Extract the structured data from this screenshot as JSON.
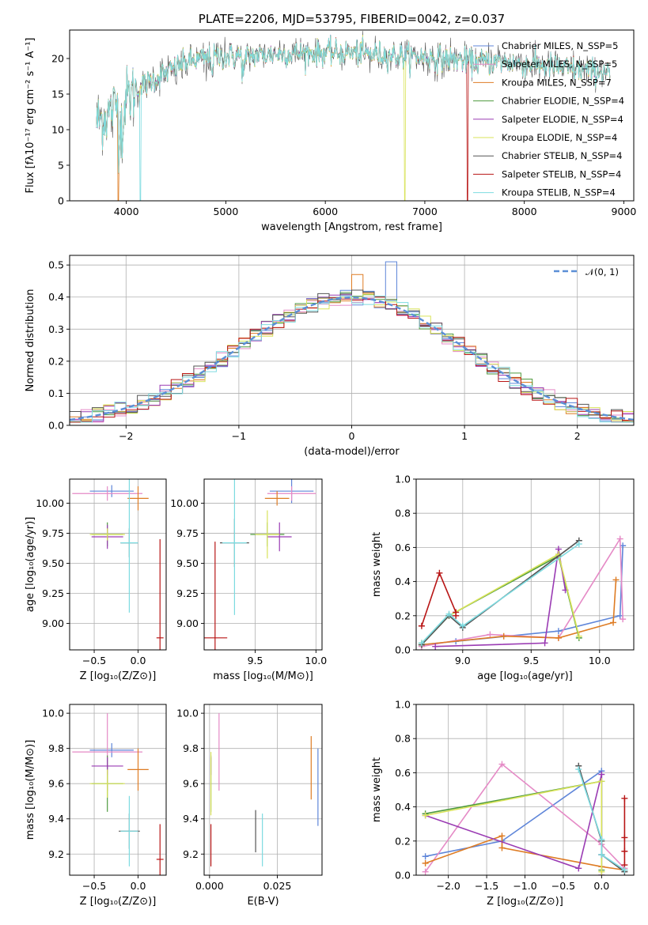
{
  "colors": {
    "c_miles": "#5f86d9",
    "s_miles": "#e58ac6",
    "k_miles": "#de7c24",
    "c_elodie": "#4e9a3e",
    "s_elodie": "#9a3bb3",
    "k_elodie": "#d9e35a",
    "c_stelib": "#555555",
    "s_stelib": "#b81515",
    "k_stelib": "#7ddbe0",
    "normal": "#5b8fd6"
  },
  "chart_data": [
    {
      "id": "spectrum",
      "type": "line",
      "title": "PLATE=2206, MJD=53795, FIBERID=0042, z=0.037",
      "xlabel": "wavelength [Angstrom, rest frame]",
      "ylabel": "Flux [fλ10⁻¹⁷ erg cm⁻² s⁻¹ A⁻¹]",
      "xlim": [
        3430,
        9100
      ],
      "ylim": [
        0,
        24
      ],
      "xticks": [
        "4000",
        "5000",
        "6000",
        "7000",
        "8000",
        "9000"
      ],
      "yticks": [
        "0",
        "5",
        "10",
        "15",
        "20"
      ],
      "grid": false,
      "legend_position": "top-right",
      "continuum": {
        "x": [
          3700,
          3800,
          3900,
          4000,
          4100,
          4200,
          4400,
          4600,
          4800,
          5000,
          5200,
          5500,
          5800,
          6000,
          6300,
          6600,
          6900,
          7200,
          7500,
          7800,
          8200,
          8500,
          8850
        ],
        "y": [
          11,
          12,
          13.5,
          14.5,
          15.5,
          16.5,
          18,
          19.5,
          20,
          20.3,
          20.3,
          20.6,
          20.8,
          20.8,
          20.8,
          20.5,
          20.3,
          20,
          19.5,
          19.5,
          19,
          18.5,
          18
        ]
      },
      "series": [
        {
          "name": "Chabrier MILES, N_SSP=5",
          "color_key": "c_miles"
        },
        {
          "name": "Salpeter MILES, N_SSP=5",
          "color_key": "s_miles"
        },
        {
          "name": "Kroupa MILES, N_SSP=7",
          "color_key": "k_miles"
        },
        {
          "name": "Chabrier ELODIE, N_SSP=4",
          "color_key": "c_elodie"
        },
        {
          "name": "Salpeter ELODIE, N_SSP=4",
          "color_key": "s_elodie"
        },
        {
          "name": "Kroupa ELODIE, N_SSP=4",
          "color_key": "k_elodie"
        },
        {
          "name": "Chabrier STELIB, N_SSP=4",
          "color_key": "c_stelib"
        },
        {
          "name": "Salpeter STELIB, N_SSP=4",
          "color_key": "s_stelib"
        },
        {
          "name": "Kroupa STELIB, N_SSP=4",
          "color_key": "k_stelib"
        }
      ]
    },
    {
      "id": "residuals",
      "type": "bar",
      "xlabel": "(data-model)/error",
      "ylabel": "Normed distribution",
      "xlim": [
        -2.5,
        2.5
      ],
      "ylim": [
        0,
        0.53
      ],
      "xticks": [
        "−2",
        "−1",
        "0",
        "1",
        "2"
      ],
      "yticks": [
        "0.0",
        "0.1",
        "0.2",
        "0.3",
        "0.4",
        "0.5"
      ],
      "grid": true,
      "legend": "𝒩(0, 1)",
      "bin_edges_start": -2.5,
      "bin_width": 0.1,
      "bins": 50,
      "legend_position": "top-right"
    },
    {
      "id": "age_vs_Z",
      "type": "scatter",
      "xlabel": "Z [log₁₀(Z/Z⊙)]",
      "ylabel": "age  [log₁₀(age/yr)]",
      "xlim": [
        -0.78,
        0.32
      ],
      "ylim": [
        8.78,
        10.2
      ],
      "xticks": [
        "−0.5",
        "0.0"
      ],
      "yticks": [
        "9.00",
        "9.25",
        "9.50",
        "9.75",
        "10.00"
      ],
      "grid": true,
      "points": [
        {
          "color_key": "c_miles",
          "x": -0.3,
          "xerr": 0.25,
          "y": 10.1,
          "yerr": 0.05
        },
        {
          "color_key": "s_miles",
          "x": -0.35,
          "xerr": 0.4,
          "y": 10.08,
          "yerr": 0.06
        },
        {
          "color_key": "k_miles",
          "x": 0.0,
          "xerr": 0.12,
          "y": 10.04,
          "yerr": 0.1
        },
        {
          "color_key": "c_elodie",
          "x": -0.35,
          "xerr": 0.18,
          "y": 9.74,
          "yerr": 0.1
        },
        {
          "color_key": "s_elodie",
          "x": -0.35,
          "xerr": 0.18,
          "y": 9.72,
          "yerr": 0.1
        },
        {
          "color_key": "k_elodie",
          "x": -0.35,
          "xerr": 0.2,
          "y": 9.74,
          "yerr": 0.05
        },
        {
          "color_key": "c_stelib",
          "x": -0.1,
          "xerr": 0.1,
          "y": 9.67,
          "yerr": 0.12
        },
        {
          "color_key": "s_stelib",
          "x": 0.25,
          "xerr": 0.04,
          "y": 8.88,
          "yerr": 0.82
        },
        {
          "color_key": "k_stelib",
          "x": -0.1,
          "xerr": 0.1,
          "y": 9.67,
          "yerr": 0.58
        }
      ]
    },
    {
      "id": "age_vs_mass",
      "type": "scatter",
      "xlabel": "mass [log₁₀(M/M⊙)]",
      "ylabel": "",
      "xlim": [
        9.08,
        10.05
      ],
      "ylim": [
        8.78,
        10.2
      ],
      "xticks": [
        "9.5",
        "10.0"
      ],
      "yticks": [
        "9.00",
        "9.25",
        "9.50",
        "9.75",
        "10.00"
      ],
      "grid": true,
      "points": [
        {
          "color_key": "c_miles",
          "x": 9.8,
          "xerr": 0.18,
          "y": 10.1,
          "yerr": 0.1
        },
        {
          "color_key": "s_miles",
          "x": 9.8,
          "xerr": 0.2,
          "y": 10.08,
          "yerr": 0.06
        },
        {
          "color_key": "k_miles",
          "x": 9.68,
          "xerr": 0.1,
          "y": 10.04,
          "yerr": 0.06
        },
        {
          "color_key": "c_elodie",
          "x": 9.6,
          "xerr": 0.14,
          "y": 9.74,
          "yerr": 0.1
        },
        {
          "color_key": "s_elodie",
          "x": 9.7,
          "xerr": 0.1,
          "y": 9.72,
          "yerr": 0.12
        },
        {
          "color_key": "k_elodie",
          "x": 9.6,
          "xerr": 0.1,
          "y": 9.74,
          "yerr": 0.2
        },
        {
          "color_key": "c_stelib",
          "x": 9.33,
          "xerr": 0.12,
          "y": 9.67,
          "yerr": 0.2
        },
        {
          "color_key": "s_stelib",
          "x": 9.17,
          "xerr": 0.1,
          "y": 8.88,
          "yerr": 0.8
        },
        {
          "color_key": "k_stelib",
          "x": 9.33,
          "xerr": 0.1,
          "y": 9.67,
          "yerr": 0.6
        }
      ]
    },
    {
      "id": "weight_vs_age",
      "type": "line",
      "xlabel": "age  [log₁₀(age/yr)]",
      "ylabel": "mass weight",
      "xlim": [
        8.66,
        10.25
      ],
      "ylim": [
        0,
        1
      ],
      "xticks": [
        "9.0",
        "9.5",
        "10.0"
      ],
      "yticks": [
        "0.0",
        "0.2",
        "0.4",
        "0.6",
        "0.8",
        "1.0"
      ],
      "grid": true,
      "series": [
        {
          "color_key": "c_miles",
          "x": [
            8.7,
            8.95,
            9.7,
            10.15,
            10.17
          ],
          "y": [
            0.03,
            0.05,
            0.11,
            0.2,
            0.61
          ]
        },
        {
          "color_key": "s_miles",
          "x": [
            8.7,
            9.2,
            9.7,
            10.15,
            10.17
          ],
          "y": [
            0.02,
            0.09,
            0.07,
            0.65,
            0.18
          ]
        },
        {
          "color_key": "k_miles",
          "x": [
            8.7,
            9.3,
            9.7,
            10.1,
            10.12
          ],
          "y": [
            0.03,
            0.08,
            0.07,
            0.16,
            0.41
          ]
        },
        {
          "color_key": "c_elodie",
          "x": [
            8.7,
            8.9,
            9.7,
            9.85
          ],
          "y": [
            0.03,
            0.2,
            0.55,
            0.07
          ]
        },
        {
          "color_key": "s_elodie",
          "x": [
            8.8,
            9.6,
            9.7,
            9.75
          ],
          "y": [
            0.02,
            0.04,
            0.59,
            0.35
          ]
        },
        {
          "color_key": "k_elodie",
          "x": [
            8.7,
            8.9,
            9.7,
            9.85
          ],
          "y": [
            0.04,
            0.2,
            0.56,
            0.08
          ]
        },
        {
          "color_key": "c_stelib",
          "x": [
            8.7,
            8.9,
            9.0,
            9.85
          ],
          "y": [
            0.03,
            0.2,
            0.13,
            0.64
          ]
        },
        {
          "color_key": "s_stelib",
          "x": [
            8.7,
            8.83,
            8.95,
            8.95
          ],
          "y": [
            0.14,
            0.45,
            0.22,
            0.2
          ]
        },
        {
          "color_key": "k_stelib",
          "x": [
            8.7,
            8.9,
            9.0,
            9.85
          ],
          "y": [
            0.04,
            0.21,
            0.14,
            0.62
          ]
        }
      ]
    },
    {
      "id": "mass_vs_Z",
      "type": "scatter",
      "xlabel": "Z [log₁₀(Z/Z⊙)]",
      "ylabel": "mass [log₁₀(M/M⊙)]",
      "xlim": [
        -0.78,
        0.32
      ],
      "ylim": [
        9.08,
        10.05
      ],
      "xticks": [
        "−0.5",
        "0.0"
      ],
      "yticks": [
        "9.2",
        "9.4",
        "9.6",
        "9.8",
        "10.0"
      ],
      "grid": true,
      "points": [
        {
          "color_key": "c_miles",
          "x": -0.3,
          "xerr": 0.25,
          "y": 9.79,
          "yerr": 0.04
        },
        {
          "color_key": "s_miles",
          "x": -0.35,
          "xerr": 0.4,
          "y": 9.78,
          "yerr": 0.22
        },
        {
          "color_key": "k_miles",
          "x": 0.0,
          "xerr": 0.12,
          "y": 9.68,
          "yerr": 0.12
        },
        {
          "color_key": "c_elodie",
          "x": -0.35,
          "xerr": 0.18,
          "y": 9.6,
          "yerr": 0.16
        },
        {
          "color_key": "s_elodie",
          "x": -0.35,
          "xerr": 0.18,
          "y": 9.7,
          "yerr": 0.05
        },
        {
          "color_key": "k_elodie",
          "x": -0.35,
          "xerr": 0.2,
          "y": 9.6,
          "yerr": 0.08
        },
        {
          "color_key": "c_stelib",
          "x": -0.1,
          "xerr": 0.12,
          "y": 9.33,
          "yerr": 0.1
        },
        {
          "color_key": "s_stelib",
          "x": 0.25,
          "xerr": 0.04,
          "y": 9.17,
          "yerr": 0.2
        },
        {
          "color_key": "k_stelib",
          "x": -0.1,
          "xerr": 0.1,
          "y": 9.33,
          "yerr": 0.2
        }
      ]
    },
    {
      "id": "mass_vs_ebv",
      "type": "scatter",
      "xlabel": "E(B-V)",
      "ylabel": "",
      "xlim": [
        -0.002,
        0.0415
      ],
      "ylim": [
        9.08,
        10.05
      ],
      "xticks": [
        "0.000",
        "0.025"
      ],
      "yticks": [
        "9.2",
        "9.4",
        "9.6",
        "9.8",
        "10.0"
      ],
      "grid": true,
      "points": [
        {
          "color_key": "c_miles",
          "x": 0.04,
          "y": 9.58,
          "yerr": 0.22
        },
        {
          "color_key": "s_miles",
          "x": 0.0035,
          "y": 9.78,
          "yerr": 0.22
        },
        {
          "color_key": "k_miles",
          "x": 0.0375,
          "y": 9.69,
          "yerr": 0.18
        },
        {
          "color_key": "c_elodie",
          "x": 0.0005,
          "y": 9.6,
          "yerr": 0.16
        },
        {
          "color_key": "s_elodie",
          "x": 0.0005,
          "y": 9.7,
          "yerr": 0.05
        },
        {
          "color_key": "k_elodie",
          "x": 0.0005,
          "y": 9.6,
          "yerr": 0.18
        },
        {
          "color_key": "c_stelib",
          "x": 0.017,
          "y": 9.33,
          "yerr": 0.12
        },
        {
          "color_key": "s_stelib",
          "x": 0.0005,
          "y": 9.25,
          "yerr": 0.12
        },
        {
          "color_key": "k_stelib",
          "x": 0.0195,
          "y": 9.28,
          "yerr": 0.15
        }
      ]
    },
    {
      "id": "weight_vs_Z",
      "type": "line",
      "xlabel": "Z [log₁₀(Z/Z⊙)]",
      "ylabel": "mass weight",
      "xlim": [
        -2.42,
        0.42
      ],
      "ylim": [
        0,
        1
      ],
      "xticks": [
        "−2.0",
        "−1.5",
        "−1.0",
        "−0.5",
        "0.0"
      ],
      "yticks": [
        "0.0",
        "0.2",
        "0.4",
        "0.6",
        "0.8",
        "1.0"
      ],
      "grid": true,
      "series": [
        {
          "color_key": "c_miles",
          "x": [
            -2.3,
            -1.3,
            0.0,
            0.0,
            0.3
          ],
          "y": [
            0.11,
            0.2,
            0.61,
            0.12,
            0.03
          ]
        },
        {
          "color_key": "s_miles",
          "x": [
            -2.3,
            -1.3,
            0.0,
            0.3
          ],
          "y": [
            0.02,
            0.65,
            0.18,
            0.04
          ]
        },
        {
          "color_key": "k_miles",
          "x": [
            -2.3,
            -1.3,
            -1.3,
            0.0,
            0.3
          ],
          "y": [
            0.07,
            0.23,
            0.16,
            0.05,
            0.03
          ]
        },
        {
          "color_key": "c_elodie",
          "x": [
            -2.3,
            0.0,
            0.0
          ],
          "y": [
            0.36,
            0.55,
            0.03
          ]
        },
        {
          "color_key": "s_elodie",
          "x": [
            -2.3,
            -0.3,
            0.0,
            0.0
          ],
          "y": [
            0.35,
            0.04,
            0.59,
            0.0
          ]
        },
        {
          "color_key": "k_elodie",
          "x": [
            -2.3,
            0.0,
            0.0
          ],
          "y": [
            0.35,
            0.55,
            0.02
          ]
        },
        {
          "color_key": "c_stelib",
          "x": [
            -0.3,
            0.0,
            0.0,
            0.3
          ],
          "y": [
            0.64,
            0.2,
            0.12,
            0.02
          ]
        },
        {
          "color_key": "s_stelib",
          "x": [
            0.3,
            0.3,
            0.3,
            0.3
          ],
          "y": [
            0.45,
            0.22,
            0.14,
            0.06
          ]
        },
        {
          "color_key": "k_stelib",
          "x": [
            -0.3,
            0.0,
            0.0,
            0.3
          ],
          "y": [
            0.62,
            0.21,
            0.12,
            0.03
          ]
        }
      ]
    }
  ]
}
